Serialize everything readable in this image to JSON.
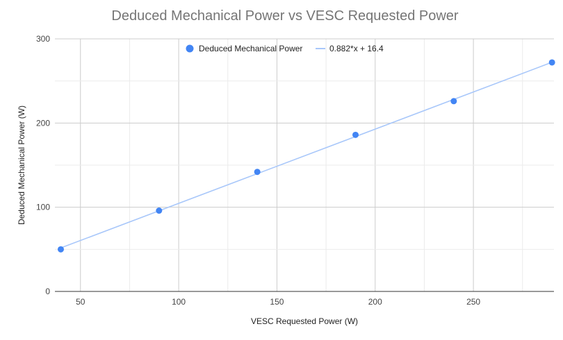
{
  "chart_data": {
    "type": "scatter",
    "title": "Deduced Mechanical Power vs VESC Requested Power",
    "xlabel": "VESC Requested Power (W)",
    "ylabel": "Deduced Mechanical Power (W)",
    "xlim": [
      37,
      291
    ],
    "ylim": [
      0,
      300
    ],
    "x_ticks": [
      50,
      100,
      150,
      200,
      250
    ],
    "y_ticks": [
      0,
      100,
      200,
      300
    ],
    "grid": true,
    "legend_position": "top",
    "series": [
      {
        "name": "Deduced Mechanical Power",
        "type": "scatter",
        "color": "#4285f4",
        "x": [
          40,
          90,
          140,
          190,
          240,
          290
        ],
        "y": [
          50,
          96,
          142,
          186,
          226,
          272
        ]
      },
      {
        "name": "0.882*x + 16.4",
        "type": "trendline",
        "color": "#a8c7fa",
        "slope": 0.882,
        "intercept": 16.4
      }
    ]
  }
}
